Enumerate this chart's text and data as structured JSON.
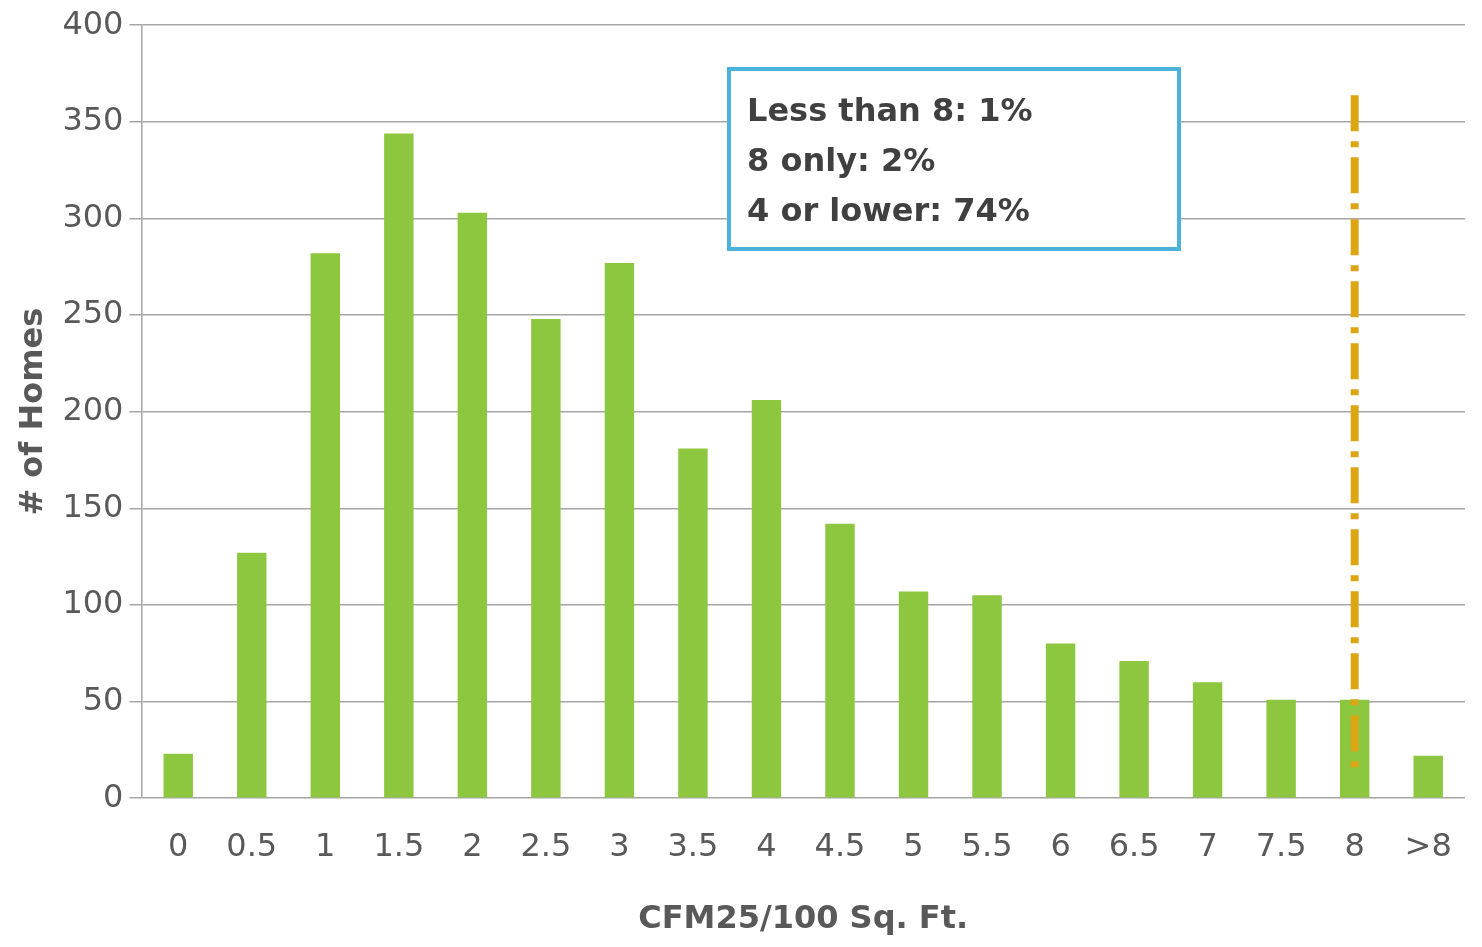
{
  "chart_data": {
    "type": "bar",
    "xlabel": "CFM25/100 Sq. Ft.",
    "ylabel": "# of Homes",
    "categories": [
      "0",
      "0.5",
      "1",
      "1.5",
      "2",
      "2.5",
      "3",
      "3.5",
      "4",
      "4.5",
      "5",
      "5.5",
      "6",
      "6.5",
      "7",
      "7.5",
      "8",
      ">8"
    ],
    "values": [
      23,
      127,
      282,
      344,
      303,
      248,
      277,
      181,
      206,
      142,
      107,
      105,
      80,
      71,
      60,
      51,
      51,
      22
    ],
    "color": "#8dc63f",
    "ylim": [
      0,
      400
    ],
    "yticks": [
      0,
      50,
      100,
      150,
      200,
      250,
      300,
      350,
      400
    ],
    "grid": "y",
    "legend": false,
    "ref_lines": [
      {
        "axis": "x",
        "value": "8",
        "color": "#dba514",
        "line_style": "dashdot"
      }
    ],
    "annotations": [
      "Less than 8: 1%",
      "8 only: 2%",
      "4 or lower: 74%"
    ]
  }
}
